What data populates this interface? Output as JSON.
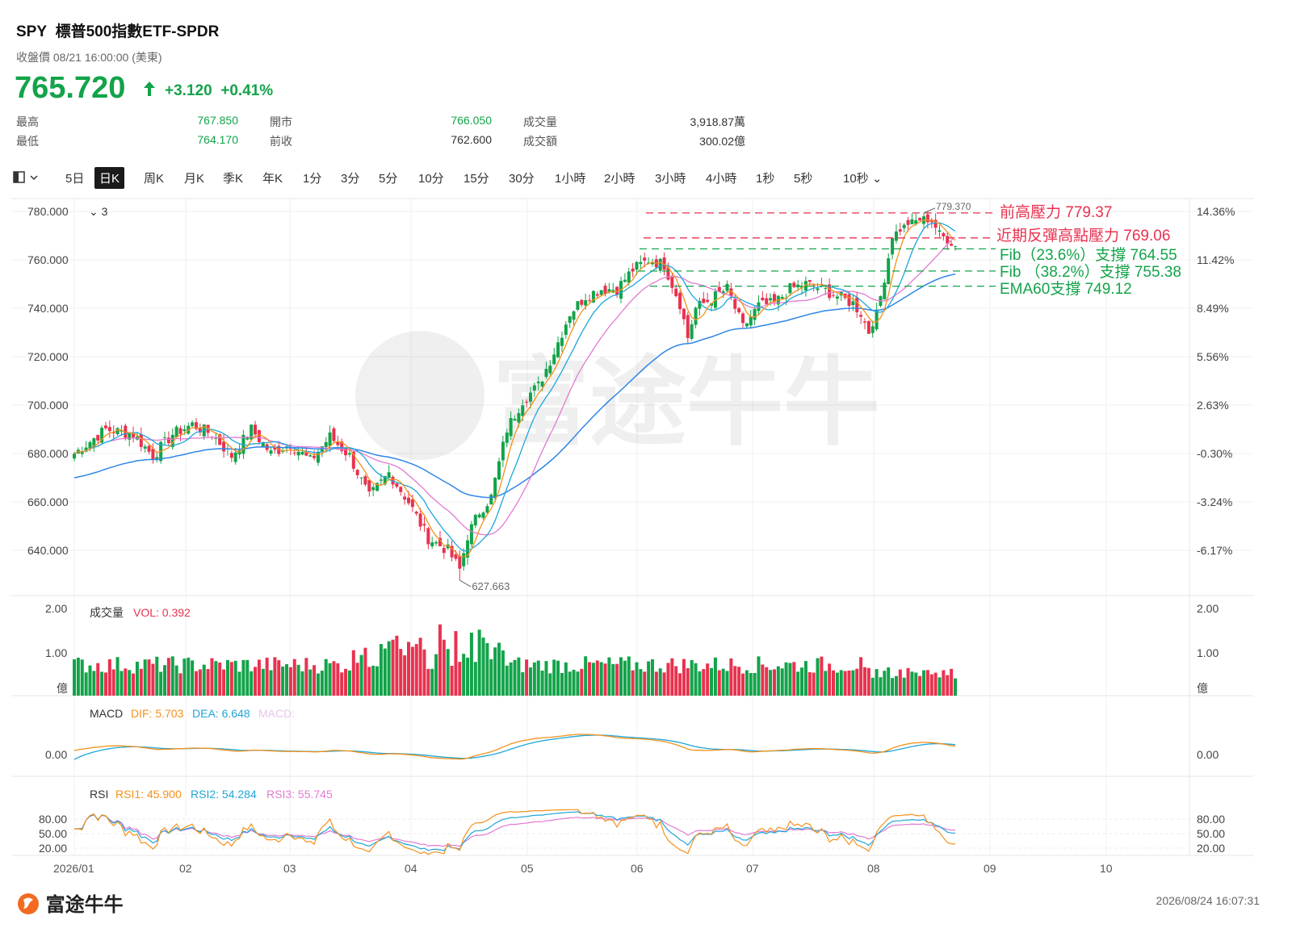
{
  "header": {
    "symbol": "SPY",
    "name": "標普500指數ETF-SPDR",
    "close_label": "收盤價 08/21 16:00:00 (美東)",
    "price": "765.720",
    "change": "+3.120",
    "change_pct": "+0.41%"
  },
  "stats": {
    "high_label": "最高",
    "high": "767.850",
    "low_label": "最低",
    "low": "764.170",
    "open_label": "開市",
    "open": "766.050",
    "prev_label": "前收",
    "prev": "762.600",
    "vol_label": "成交量",
    "vol": "3,918.87萬",
    "amt_label": "成交額",
    "amt": "300.02億"
  },
  "toolbar": {
    "intervals": [
      "5日",
      "日K",
      "周K",
      "月K",
      "季K",
      "年K",
      "1分",
      "3分",
      "5分",
      "10分",
      "15分",
      "30分",
      "1小時",
      "2小時",
      "3小時",
      "4小時",
      "1秒",
      "5秒",
      "10秒"
    ],
    "active": "日K"
  },
  "colors": {
    "up": "#13a34a",
    "down": "#e8324f",
    "ma1": "#f3911c",
    "ma2": "#1fa6d9",
    "ma3": "#e27ad2",
    "ema60": "#2f86e6",
    "resist": "#e8324f",
    "support": "#13a34a"
  },
  "chart_data": [
    {
      "type": "candlestick",
      "title": "",
      "ma_toggle_label": "3",
      "y_ticks_left": [
        "780.000",
        "760.000",
        "740.000",
        "720.000",
        "700.000",
        "680.000",
        "660.000",
        "640.000"
      ],
      "y_ticks_right": [
        "14.36%",
        "11.42%",
        "8.49%",
        "5.56%",
        "2.63%",
        "-0.30%",
        "-3.24%",
        "-6.17%"
      ],
      "ylim": [
        620,
        786
      ],
      "x_labels": [
        "2026/01",
        "02",
        "03",
        "04",
        "05",
        "06",
        "07",
        "08",
        "09",
        "10"
      ],
      "high_marker": "779.370",
      "low_marker": "627.663",
      "levels": [
        {
          "label": "前高壓力 779.37",
          "value": 779.37,
          "kind": "resist"
        },
        {
          "label": "近期反彈高點壓力 769.06",
          "value": 769.06,
          "kind": "resist"
        },
        {
          "label": "Fib（23.6%）支撐 764.55",
          "value": 764.55,
          "kind": "support"
        },
        {
          "label": "Fib （38.2%）支撐 755.38",
          "value": 755.38,
          "kind": "support"
        },
        {
          "label": "EMA60支撐 749.12",
          "value": 749.12,
          "kind": "support"
        }
      ],
      "close_keypoints": [
        [
          0,
          680
        ],
        [
          8,
          690
        ],
        [
          15,
          688
        ],
        [
          20,
          679
        ],
        [
          25,
          688
        ],
        [
          30,
          692
        ],
        [
          35,
          688
        ],
        [
          40,
          679
        ],
        [
          45,
          690
        ],
        [
          50,
          680
        ],
        [
          55,
          684
        ],
        [
          60,
          677
        ],
        [
          65,
          687
        ],
        [
          70,
          679
        ],
        [
          75,
          662
        ],
        [
          80,
          672
        ],
        [
          85,
          660
        ],
        [
          90,
          645
        ],
        [
          95,
          640
        ],
        [
          98,
          632
        ],
        [
          100,
          646
        ],
        [
          103,
          656
        ],
        [
          106,
          662
        ],
        [
          110,
          690
        ],
        [
          114,
          702
        ],
        [
          118,
          708
        ],
        [
          122,
          722
        ],
        [
          126,
          738
        ],
        [
          130,
          745
        ],
        [
          134,
          748
        ],
        [
          138,
          748
        ],
        [
          142,
          756
        ],
        [
          146,
          760
        ],
        [
          150,
          758
        ],
        [
          154,
          742
        ],
        [
          156,
          728
        ],
        [
          158,
          740
        ],
        [
          162,
          744
        ],
        [
          166,
          748
        ],
        [
          170,
          732
        ],
        [
          174,
          741
        ],
        [
          178,
          742
        ],
        [
          182,
          748
        ],
        [
          186,
          750
        ],
        [
          190,
          748
        ],
        [
          194,
          745
        ],
        [
          198,
          742
        ],
        [
          200,
          738
        ],
        [
          202,
          730
        ],
        [
          204,
          738
        ],
        [
          206,
          752
        ],
        [
          208,
          770
        ],
        [
          212,
          775
        ],
        [
          216,
          777
        ],
        [
          218,
          776
        ],
        [
          220,
          771
        ],
        [
          222,
          768
        ],
        [
          224,
          765.72
        ]
      ],
      "volume": {
        "label": "成交量",
        "vol_label": "VOL: 0.392",
        "y_ticks": [
          "2.00",
          "1.00"
        ],
        "unit": "億",
        "ylim": [
          0,
          2.0
        ],
        "last": 0.392
      },
      "macd": {
        "label": "MACD",
        "dif_label": "DIF: 5.703",
        "dea_label": "DEA: 6.648",
        "macd_label": "MACD:",
        "y_ticks": [
          "0.00"
        ],
        "dif": 5.703,
        "dea": 6.648
      },
      "rsi": {
        "label": "RSI",
        "rsi1_label": "RSI1: 45.900",
        "rsi2_label": "RSI2: 54.284",
        "rsi3_label": "RSI3: 55.745",
        "y_ticks": [
          "80.00",
          "50.00",
          "20.00"
        ],
        "rsi1": 45.9,
        "rsi2": 54.284,
        "rsi3": 55.745
      }
    }
  ],
  "footer": {
    "logo_text": "富途牛牛",
    "timestamp": "2026/08/24 16:07:31",
    "watermark": "富途牛牛"
  }
}
